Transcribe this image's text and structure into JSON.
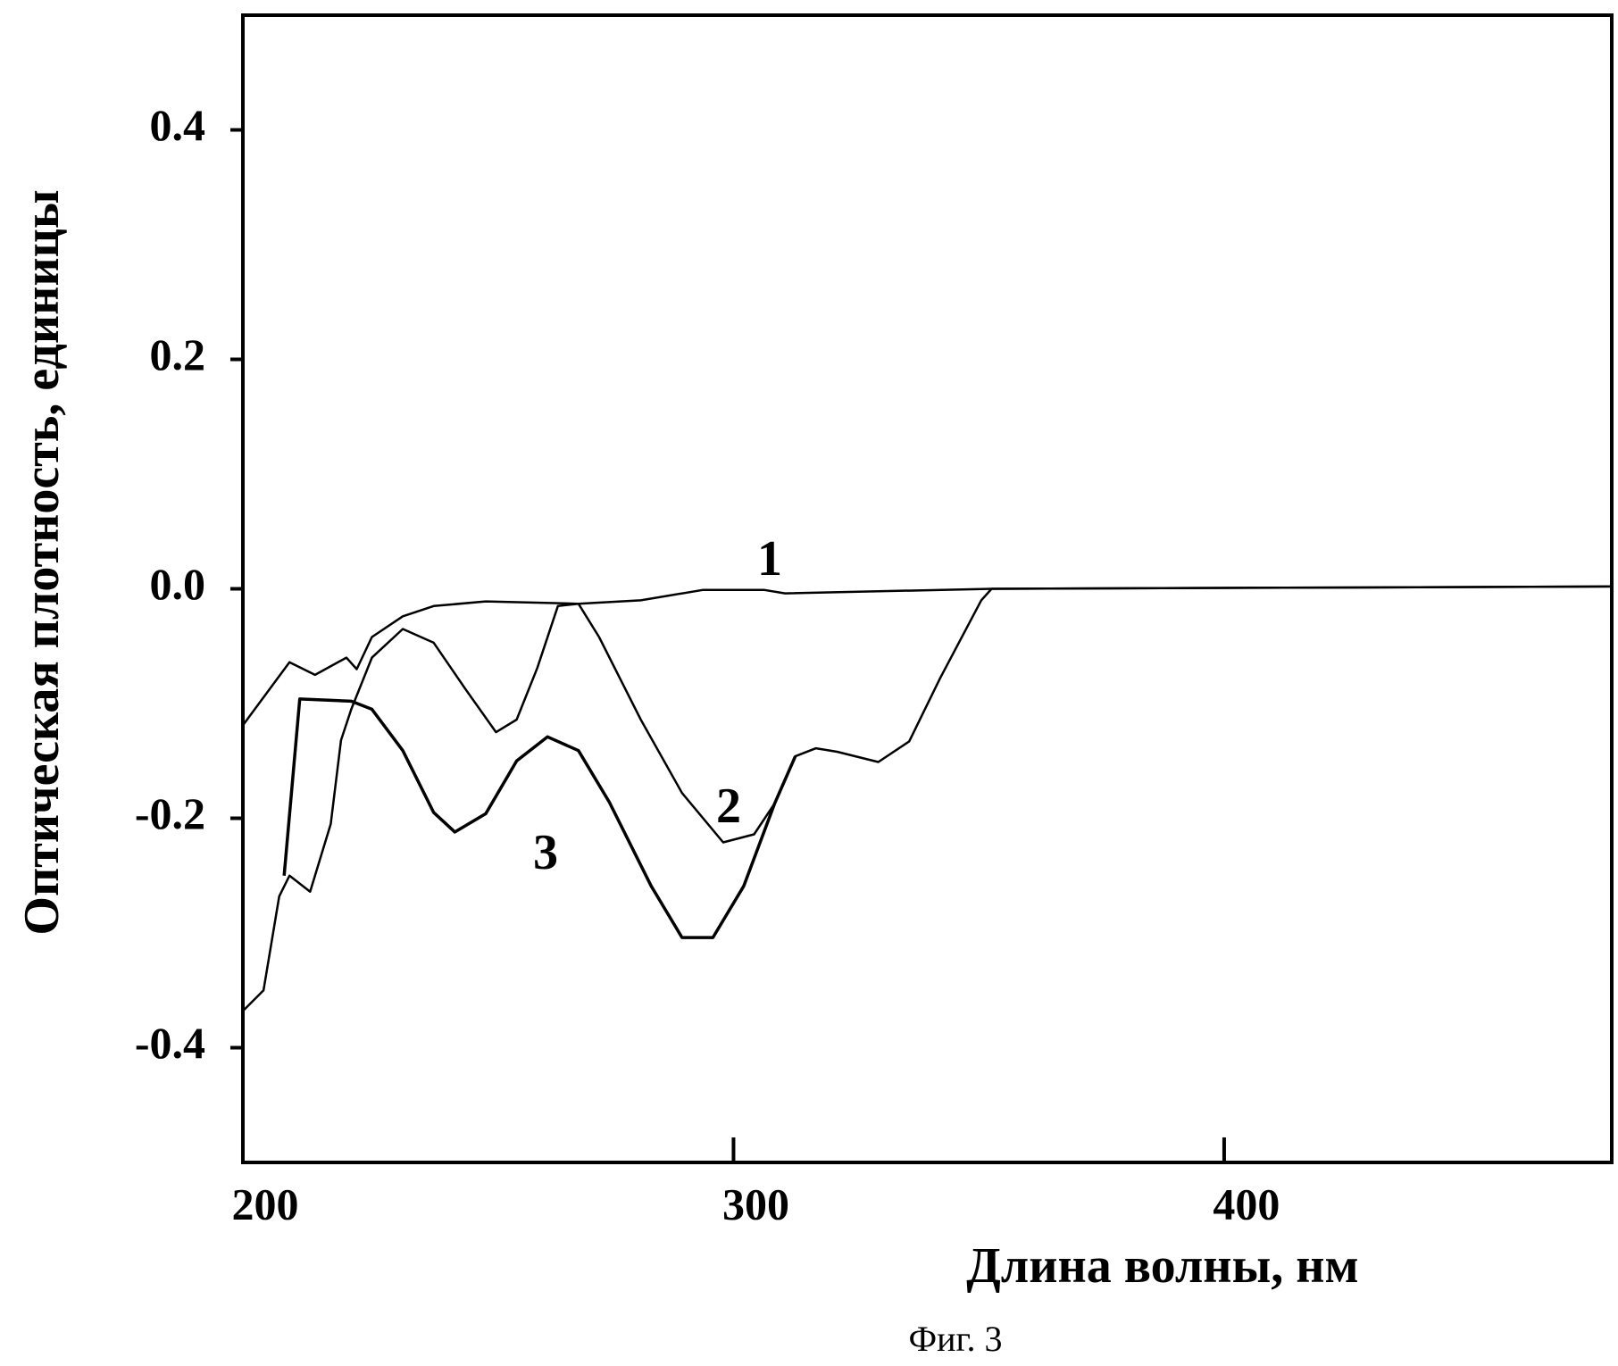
{
  "chart_data": {
    "type": "line",
    "caption": "Фиг. 3",
    "x_label": "Длина волны, нм",
    "y_label": "Оптическая плотность, единицы",
    "xlim": [
      200,
      479
    ],
    "ylim": [
      -0.5,
      0.5
    ],
    "xticks": [
      200,
      300,
      400
    ],
    "yticks": [
      -0.4,
      -0.2,
      {
        "value": 0,
        "label": "0.0"
      },
      0.2,
      0.4
    ],
    "grid": false,
    "series": [
      {
        "name": "1",
        "color": "#000000",
        "x": [
          200,
          209.5,
          214.7,
          221.1,
          223.2,
          226.3,
          232.6,
          238.9,
          249.5,
          268.4,
          281.1,
          293.7,
          306.3,
          310.5,
          352.6,
          479
        ],
        "values": [
          -0.119,
          -0.064,
          -0.075,
          -0.06,
          -0.07,
          -0.042,
          -0.024,
          -0.015,
          -0.011,
          -0.013,
          -0.01,
          -0.001,
          -0.001,
          -0.004,
          0,
          0.002
        ]
      },
      {
        "name": "2",
        "color": "#000000",
        "x": [
          200,
          204.2,
          207.4,
          209.5,
          213.7,
          217.9,
          220,
          222.1,
          226.3,
          232.6,
          238.9,
          245.3,
          251.6,
          255.8,
          260,
          264.2,
          268.4,
          272.6,
          281.1,
          289.5,
          297.9,
          304.2,
          308.4,
          312.6,
          316.8,
          321.1,
          329.5,
          335.8,
          342.1,
          350.5,
          352.6,
          479
        ],
        "values": [
          -0.368,
          -0.35,
          -0.268,
          -0.25,
          -0.264,
          -0.205,
          -0.132,
          -0.105,
          -0.06,
          -0.035,
          -0.047,
          -0.087,
          -0.125,
          -0.114,
          -0.069,
          -0.015,
          -0.013,
          -0.042,
          -0.114,
          -0.178,
          -0.221,
          -0.214,
          -0.187,
          -0.146,
          -0.139,
          -0.142,
          -0.151,
          -0.133,
          -0.078,
          -0.01,
          0,
          0.002
        ]
      },
      {
        "name": "3",
        "color": "#000000",
        "x": [
          208.4,
          211.6,
          222.1,
          226.3,
          232.6,
          238.9,
          243.2,
          249.5,
          255.8,
          262.1,
          268.4,
          274.7,
          283.2,
          289.5,
          295.8,
          302.1,
          308.4,
          312.6
        ],
        "values": [
          -0.25,
          -0.096,
          -0.098,
          -0.105,
          -0.141,
          -0.195,
          -0.212,
          -0.196,
          -0.15,
          -0.129,
          -0.141,
          -0.186,
          -0.259,
          -0.304,
          -0.304,
          -0.259,
          -0.187,
          -0.146
        ]
      }
    ]
  }
}
